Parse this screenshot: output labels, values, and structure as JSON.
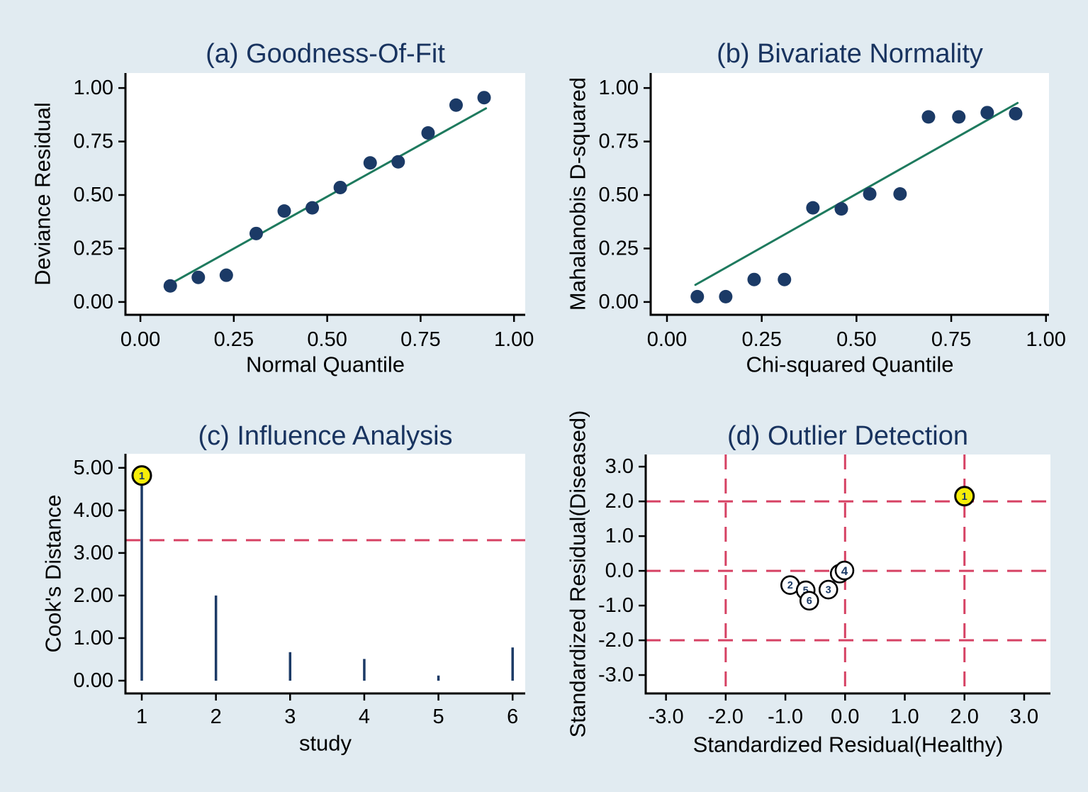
{
  "page": {
    "background": "#e1ebf1"
  },
  "colors": {
    "plot_bg": "#ffffff",
    "axis": "#000000",
    "tick_text": "#000000",
    "title": "#18335f",
    "point": "#1b3a66",
    "fit_line": "#1e7a5e",
    "reference": "#d64264",
    "highlight_fill": "#f6ed0a",
    "marker_fill": "#ffffff",
    "marker_stroke": "#000000",
    "marker_label": "#1b3a66"
  },
  "chart_data": [
    {
      "key": "a",
      "type": "scatter",
      "title": "(a) Goodness-Of-Fit",
      "xlabel": "Normal Quantile",
      "ylabel": "Deviance Residual",
      "xlim": [
        -0.04,
        1.03
      ],
      "ylim": [
        -0.06,
        1.07
      ],
      "xticks": [
        {
          "v": 0,
          "t": "0.00"
        },
        {
          "v": 0.25,
          "t": "0.25"
        },
        {
          "v": 0.5,
          "t": "0.50"
        },
        {
          "v": 0.75,
          "t": "0.75"
        },
        {
          "v": 1,
          "t": "1.00"
        }
      ],
      "yticks": [
        {
          "v": 0,
          "t": "0.00"
        },
        {
          "v": 0.25,
          "t": "0.25"
        },
        {
          "v": 0.5,
          "t": "0.50"
        },
        {
          "v": 0.75,
          "t": "0.75"
        },
        {
          "v": 1,
          "t": "1.00"
        }
      ],
      "fit_line": {
        "x1": 0.065,
        "y1": 0.07,
        "x2": 0.925,
        "y2": 0.905
      },
      "points": [
        [
          0.08,
          0.075
        ],
        [
          0.155,
          0.115
        ],
        [
          0.23,
          0.125
        ],
        [
          0.31,
          0.32
        ],
        [
          0.385,
          0.425
        ],
        [
          0.46,
          0.44
        ],
        [
          0.535,
          0.535
        ],
        [
          0.615,
          0.65
        ],
        [
          0.69,
          0.655
        ],
        [
          0.77,
          0.79
        ],
        [
          0.845,
          0.92
        ],
        [
          0.92,
          0.955
        ]
      ]
    },
    {
      "key": "b",
      "type": "scatter",
      "title": "(b) Bivariate Normality",
      "xlabel": "Chi-squared Quantile",
      "ylabel": "Mahalanobis D-squared",
      "xlim": [
        -0.043,
        1.008
      ],
      "ylim": [
        -0.06,
        1.07
      ],
      "xticks": [
        {
          "v": 0,
          "t": "0.00"
        },
        {
          "v": 0.25,
          "t": "0.25"
        },
        {
          "v": 0.5,
          "t": "0.50"
        },
        {
          "v": 0.75,
          "t": "0.75"
        },
        {
          "v": 1,
          "t": "1.00"
        }
      ],
      "yticks": [
        {
          "v": 0,
          "t": "0.00"
        },
        {
          "v": 0.25,
          "t": "0.25"
        },
        {
          "v": 0.5,
          "t": "0.50"
        },
        {
          "v": 0.75,
          "t": "0.75"
        },
        {
          "v": 1,
          "t": "1.00"
        }
      ],
      "fit_line": {
        "x1": 0.075,
        "y1": 0.08,
        "x2": 0.925,
        "y2": 0.93
      },
      "points": [
        [
          0.08,
          0.025
        ],
        [
          0.155,
          0.025
        ],
        [
          0.23,
          0.105
        ],
        [
          0.31,
          0.105
        ],
        [
          0.385,
          0.44
        ],
        [
          0.46,
          0.435
        ],
        [
          0.535,
          0.505
        ],
        [
          0.615,
          0.505
        ],
        [
          0.69,
          0.865
        ],
        [
          0.77,
          0.865
        ],
        [
          0.845,
          0.885
        ],
        [
          0.92,
          0.88
        ]
      ]
    },
    {
      "key": "c",
      "type": "spike",
      "title": "(c) Influence Analysis",
      "xlabel": "study",
      "ylabel": "Cook's Distance",
      "xlim": [
        0.78,
        6.17
      ],
      "ylim": [
        -0.3,
        5.33
      ],
      "xticks": [
        {
          "v": 1,
          "t": "1"
        },
        {
          "v": 2,
          "t": "2"
        },
        {
          "v": 3,
          "t": "3"
        },
        {
          "v": 4,
          "t": "4"
        },
        {
          "v": 5,
          "t": "5"
        },
        {
          "v": 6,
          "t": "6"
        }
      ],
      "yticks": [
        {
          "v": 0,
          "t": "0.00"
        },
        {
          "v": 1,
          "t": "1.00"
        },
        {
          "v": 2,
          "t": "2.00"
        },
        {
          "v": 3,
          "t": "3.00"
        },
        {
          "v": 4,
          "t": "4.00"
        },
        {
          "v": 5,
          "t": "5.00"
        }
      ],
      "hlines": [
        3.3
      ],
      "baseline": 0,
      "spikes": [
        {
          "x": 1,
          "y": 4.72,
          "marker": {
            "label": "1",
            "y": 4.82,
            "highlight": true
          }
        },
        {
          "x": 2,
          "y": 2.0
        },
        {
          "x": 3,
          "y": 0.67
        },
        {
          "x": 4,
          "y": 0.51
        },
        {
          "x": 5,
          "y": 0.12
        },
        {
          "x": 6,
          "y": 0.78
        }
      ]
    },
    {
      "key": "d",
      "type": "labeled_scatter",
      "title": "(d) Outlier Detection",
      "xlabel": "Standardized Residual(Healthy)",
      "ylabel": "Standardized Residual(Diseased)",
      "xlim": [
        -3.34,
        3.44
      ],
      "ylim": [
        -3.53,
        3.35
      ],
      "xticks": [
        {
          "v": -3,
          "t": "-3.0"
        },
        {
          "v": -2,
          "t": "-2.0"
        },
        {
          "v": -1,
          "t": "-1.0"
        },
        {
          "v": 0,
          "t": "0.0"
        },
        {
          "v": 1,
          "t": "1.0"
        },
        {
          "v": 2,
          "t": "2.0"
        },
        {
          "v": 3,
          "t": "3.0"
        }
      ],
      "yticks": [
        {
          "v": -3,
          "t": "-3.0"
        },
        {
          "v": -2,
          "t": "-2.0"
        },
        {
          "v": -1,
          "t": "-1.0"
        },
        {
          "v": 0,
          "t": "0.0"
        },
        {
          "v": 1,
          "t": "1.0"
        },
        {
          "v": 2,
          "t": "2.0"
        },
        {
          "v": 3,
          "t": "3.0"
        }
      ],
      "hlines": [
        -2,
        0,
        2
      ],
      "vlines": [
        -2,
        0,
        2
      ],
      "points": [
        {
          "x": -0.92,
          "y": -0.41,
          "label": "2"
        },
        {
          "x": -0.66,
          "y": -0.56,
          "label": "5"
        },
        {
          "x": -0.6,
          "y": -0.86,
          "label": "6"
        },
        {
          "x": -0.28,
          "y": -0.54,
          "label": "3"
        },
        {
          "x": -0.09,
          "y": -0.08,
          "label": ""
        },
        {
          "x": -0.01,
          "y": 0.01,
          "label": "4",
          "dark": true
        },
        {
          "x": 2.0,
          "y": 2.15,
          "label": "1",
          "highlight": true
        }
      ]
    }
  ]
}
